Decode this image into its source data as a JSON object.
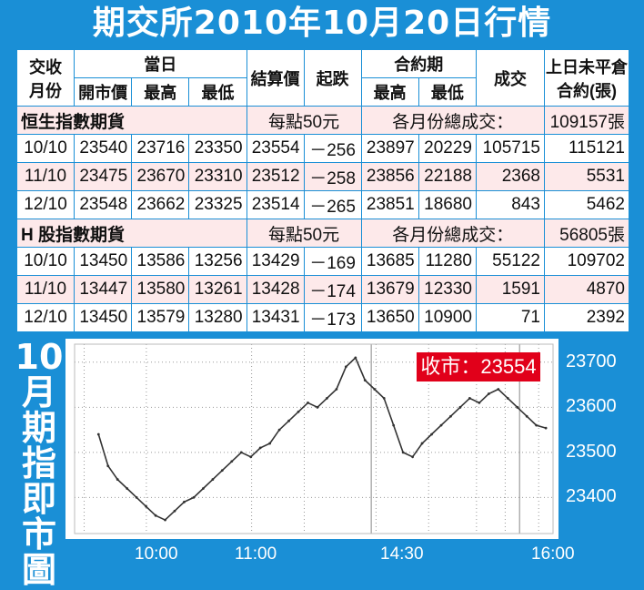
{
  "title": "期交所2010年10月20日行情",
  "table": {
    "header": {
      "month": [
        "交收",
        "月份"
      ],
      "today": "當日",
      "open": "開市價",
      "high": "最高",
      "low": "最低",
      "settle": "結算價",
      "change": "起跌",
      "contract": "合約期",
      "c_high": "最高",
      "c_low": "最低",
      "volume": "成交",
      "oi": [
        "上日未平倉",
        "合約(張)"
      ]
    },
    "sections": [
      {
        "name": "恒生指數期貨",
        "per_point": "每點50元",
        "total_label": "各月份總成交：",
        "total": "109157張",
        "rows": [
          {
            "month": "10/10",
            "open": "23540",
            "high": "23716",
            "low": "23350",
            "settle": "23554",
            "change": "－256",
            "c_high": "23897",
            "c_low": "20229",
            "volume": "105715",
            "oi": "115121"
          },
          {
            "month": "11/10",
            "open": "23475",
            "high": "23670",
            "low": "23310",
            "settle": "23512",
            "change": "－258",
            "c_high": "23856",
            "c_low": "22188",
            "volume": "2368",
            "oi": "5531"
          },
          {
            "month": "12/10",
            "open": "23548",
            "high": "23662",
            "low": "23325",
            "settle": "23514",
            "change": "－265",
            "c_high": "23851",
            "c_low": "18680",
            "volume": "843",
            "oi": "5462"
          }
        ]
      },
      {
        "name": "H 股指數期貨",
        "per_point": "每點50元",
        "total_label": "各月份總成交：",
        "total": "56805張",
        "rows": [
          {
            "month": "10/10",
            "open": "13450",
            "high": "13586",
            "low": "13256",
            "settle": "13429",
            "change": "－169",
            "c_high": "13685",
            "c_low": "11280",
            "volume": "55122",
            "oi": "109702"
          },
          {
            "month": "11/10",
            "open": "13447",
            "high": "13580",
            "low": "13261",
            "settle": "13428",
            "change": "－174",
            "c_high": "13679",
            "c_low": "12330",
            "volume": "1591",
            "oi": "4870"
          },
          {
            "month": "12/10",
            "open": "13450",
            "high": "13579",
            "low": "13280",
            "settle": "13431",
            "change": "－173",
            "c_high": "13650",
            "c_low": "10900",
            "volume": "71",
            "oi": "2392"
          }
        ]
      }
    ]
  },
  "chart_side_title": [
    "10",
    "月",
    "期",
    "指",
    "即",
    "市",
    "圖"
  ],
  "close_badge": "收市：23554",
  "colors": {
    "frame": "#1a8fd6",
    "badge": "#e1001a",
    "row_pink": "#fde9ea"
  },
  "chart_data": {
    "type": "line",
    "title": "",
    "xlabel": "",
    "ylabel": "",
    "x_ticks": [
      "10:00",
      "11:00",
      "14:30",
      "16:00"
    ],
    "y_ticks": [
      23400,
      23500,
      23600,
      23700
    ],
    "ylim": [
      23320,
      23740
    ],
    "grid": true,
    "series": [
      {
        "values": [
          23540,
          23470,
          23440,
          23420,
          23400,
          23380,
          23360,
          23350,
          23370,
          23390,
          23400,
          23420,
          23440,
          23460,
          23480,
          23500,
          23490,
          23510,
          23520,
          23550,
          23570,
          23590,
          23610,
          23600,
          23620,
          23640,
          23690,
          23710,
          23660,
          23640,
          23620,
          23560,
          23500,
          23490,
          23520,
          23540,
          23560,
          23580,
          23600,
          23620,
          23610,
          23630,
          23640,
          23620,
          23600,
          23580,
          23560,
          23554
        ]
      }
    ]
  }
}
